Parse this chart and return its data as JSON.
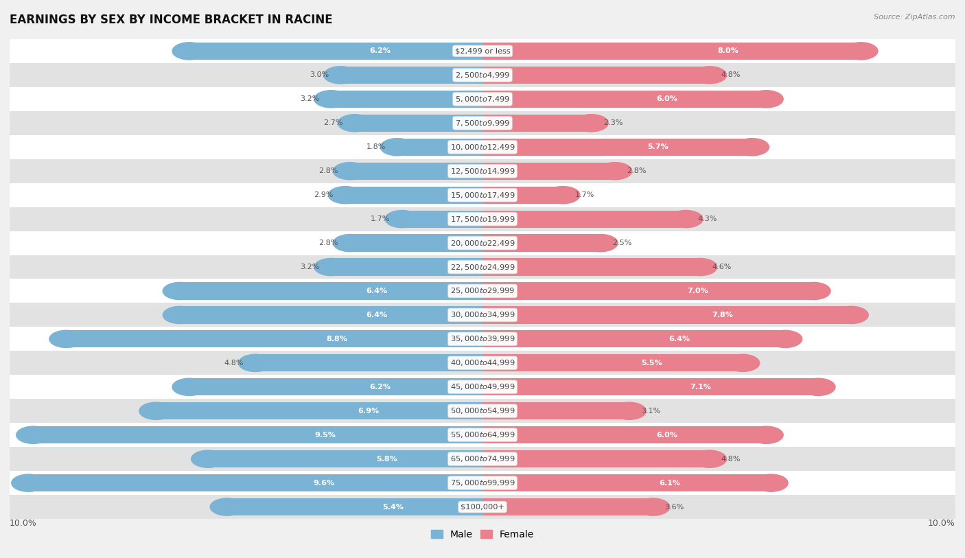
{
  "title": "EARNINGS BY SEX BY INCOME BRACKET IN RACINE",
  "source": "Source: ZipAtlas.com",
  "categories": [
    "$2,499 or less",
    "$2,500 to $4,999",
    "$5,000 to $7,499",
    "$7,500 to $9,999",
    "$10,000 to $12,499",
    "$12,500 to $14,999",
    "$15,000 to $17,499",
    "$17,500 to $19,999",
    "$20,000 to $22,499",
    "$22,500 to $24,999",
    "$25,000 to $29,999",
    "$30,000 to $34,999",
    "$35,000 to $39,999",
    "$40,000 to $44,999",
    "$45,000 to $49,999",
    "$50,000 to $54,999",
    "$55,000 to $64,999",
    "$65,000 to $74,999",
    "$75,000 to $99,999",
    "$100,000+"
  ],
  "male_values": [
    6.2,
    3.0,
    3.2,
    2.7,
    1.8,
    2.8,
    2.9,
    1.7,
    2.8,
    3.2,
    6.4,
    6.4,
    8.8,
    4.8,
    6.2,
    6.9,
    9.5,
    5.8,
    9.6,
    5.4
  ],
  "female_values": [
    8.0,
    4.8,
    6.0,
    2.3,
    5.7,
    2.8,
    1.7,
    4.3,
    2.5,
    4.6,
    7.0,
    7.8,
    6.4,
    5.5,
    7.1,
    3.1,
    6.0,
    4.8,
    6.1,
    3.6
  ],
  "male_color": "#7ab3d4",
  "female_color": "#e8808e",
  "axis_limit": 10.0,
  "bg_color": "#f0f0f0",
  "bar_bg_color": "#ffffff",
  "row_alt_color": "#e2e2e2",
  "label_color": "#555555",
  "cat_label_color": "#444444"
}
